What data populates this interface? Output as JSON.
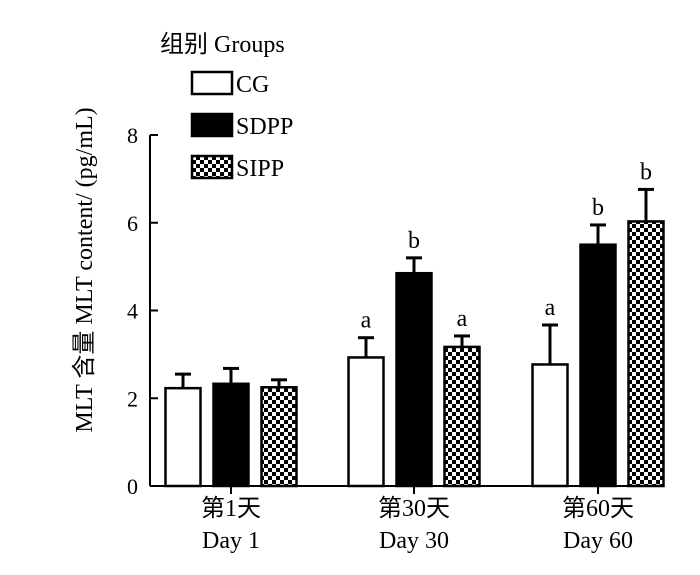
{
  "chart_data": {
    "type": "bar",
    "ylabel": "MLT 含量 MLT content/ (pg/mL)",
    "ylim": [
      0,
      8
    ],
    "yticks": [
      0,
      2,
      4,
      6,
      8
    ],
    "categories": [
      {
        "cn": "第1天",
        "en": "Day 1"
      },
      {
        "cn": "第30天",
        "en": "Day 30"
      },
      {
        "cn": "第60天",
        "en": "Day 60"
      }
    ],
    "legend": {
      "title": "组别 Groups",
      "placement": "top-left"
    },
    "series": [
      {
        "name": "CG",
        "fill": "white",
        "values": [
          2.23,
          2.93,
          2.77
        ],
        "errors": [
          0.32,
          0.45,
          0.9
        ],
        "labels": [
          "",
          "a",
          "a"
        ]
      },
      {
        "name": "SDPP",
        "fill": "black",
        "values": [
          2.33,
          4.85,
          5.5
        ],
        "errors": [
          0.35,
          0.35,
          0.45
        ],
        "labels": [
          "",
          "b",
          "b"
        ]
      },
      {
        "name": "SIPP",
        "fill": "checkered",
        "values": [
          2.25,
          3.17,
          6.03
        ],
        "errors": [
          0.17,
          0.25,
          0.73
        ],
        "labels": [
          "",
          "a",
          "b"
        ]
      }
    ],
    "grid": false,
    "colors": {
      "black": "#000000",
      "white": "#ffffff"
    }
  }
}
